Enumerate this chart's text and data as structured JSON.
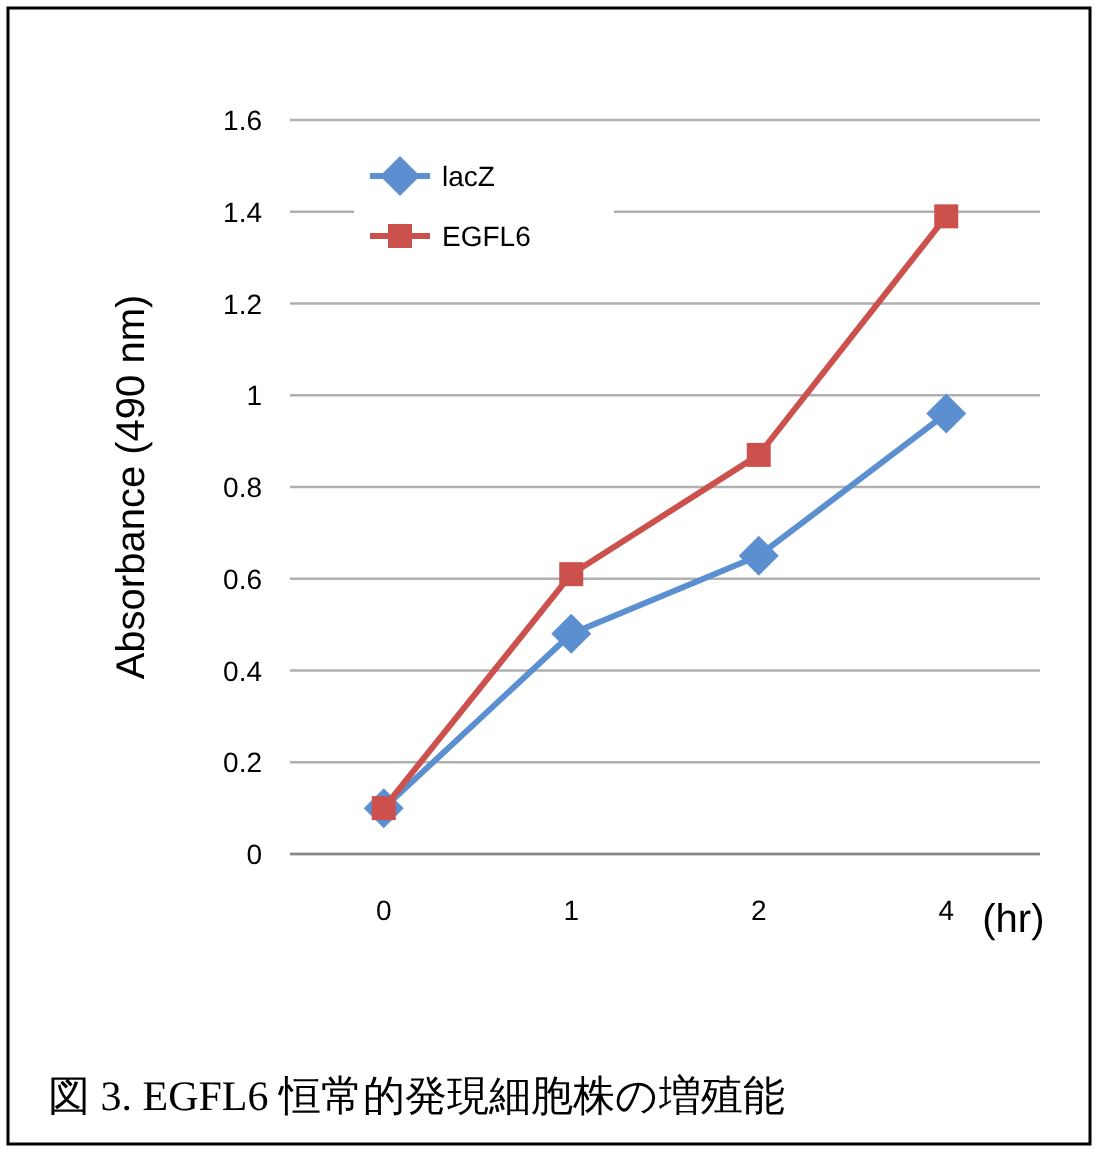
{
  "chart_data": {
    "type": "line",
    "xlabel": "(hr)",
    "ylabel": "Absorbance (490 nm)",
    "categories": [
      "0",
      "1",
      "2",
      "4"
    ],
    "series": [
      {
        "name": "lacZ",
        "color": "#5b8fd0",
        "marker": "diamond",
        "values": [
          0.1,
          0.48,
          0.65,
          0.96
        ]
      },
      {
        "name": "EGFL6",
        "color": "#cc504c",
        "marker": "square",
        "values": [
          0.1,
          0.61,
          0.87,
          1.39
        ]
      }
    ],
    "ylim": [
      0,
      1.6
    ],
    "yticks": [
      0,
      0.2,
      0.4,
      0.6,
      0.8,
      1,
      1.2,
      1.4,
      1.6
    ],
    "grid": "y",
    "legend": "top left",
    "annotations": [
      "図 3. EGFL6 恒常的発現細胞株の増殖能"
    ]
  }
}
